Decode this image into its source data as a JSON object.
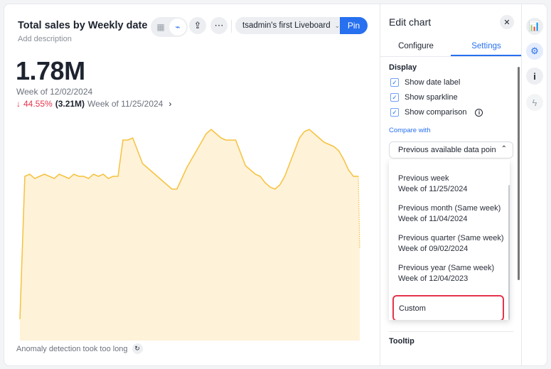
{
  "header": {
    "title": "Total sales by Weekly date",
    "description": "Add description",
    "liveboard": "tsadmin's first Liveboard",
    "pin_label": "Pin"
  },
  "kpi": {
    "value": "1.78M",
    "date_label": "Week of 12/02/2024",
    "change_pct": "44.55%",
    "change_direction": "down",
    "comparison_value": "(3.21M)",
    "comparison_date": "Week of 11/25/2024"
  },
  "anomaly": {
    "message": "Anomaly detection took too long"
  },
  "colors": {
    "accent": "#2770ef",
    "negative": "#e5344b",
    "sparkline_line": "#f6c23e",
    "sparkline_fill": "#fef2d9"
  },
  "chart_data": {
    "type": "area",
    "values": [
      10,
      77,
      78,
      76,
      77,
      78,
      77,
      76,
      78,
      77,
      76,
      78,
      77,
      77,
      76,
      78,
      77,
      78,
      76,
      77,
      77,
      94,
      94,
      95,
      89,
      83,
      81,
      79,
      77,
      75,
      73,
      71,
      71,
      76,
      81,
      85,
      89,
      93,
      97,
      99,
      97,
      95,
      94,
      94,
      94,
      88,
      82,
      80,
      78,
      77,
      74,
      72,
      71,
      73,
      77,
      83,
      89,
      95,
      98,
      99,
      97,
      95,
      93,
      92,
      91,
      89,
      85,
      80,
      77,
      77
    ],
    "projected_last": 43
  },
  "panel": {
    "title": "Edit chart",
    "tabs": [
      {
        "label": "Configure"
      },
      {
        "label": "Settings"
      }
    ],
    "active_tab": "Settings",
    "display_section": "Display",
    "checkboxes": [
      {
        "label": "Show date label",
        "checked": true
      },
      {
        "label": "Show sparkline",
        "checked": true
      },
      {
        "label": "Show comparison",
        "checked": true
      }
    ],
    "compare_with_label": "Compare with",
    "compare_with_value": "Previous available data poin",
    "options": [
      {
        "label": "Previous week",
        "sub": "Week of 11/25/2024"
      },
      {
        "label": "Previous month (Same week)",
        "sub": "Week of 11/04/2024"
      },
      {
        "label": "Previous quarter (Same week)",
        "sub": "Week of 09/02/2024"
      },
      {
        "label": "Previous year (Same week)",
        "sub": "Week of 12/04/2023"
      }
    ],
    "custom_label": "Custom",
    "tooltip_section": "Tooltip"
  },
  "rail": [
    "chart-icon",
    "gear-icon",
    "info-icon",
    "bolt-icon"
  ]
}
